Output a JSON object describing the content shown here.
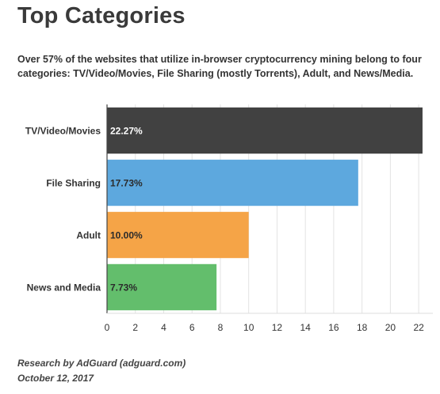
{
  "title": "Top Categories",
  "subtitle": "Over 57% of the websites that utilize in-browser cryptocurrency mining belong to four categories: TV/Video/Movies, File Sharing (mostly Torrents), Adult, and News/Media.",
  "footer": {
    "source": "Research by AdGuard (adguard.com)",
    "date": "October 12, 2017"
  },
  "chart_data": {
    "type": "bar",
    "orientation": "horizontal",
    "categories": [
      "TV/Video/Movies",
      "File Sharing",
      "Adult",
      "News and Media"
    ],
    "values": [
      22.27,
      17.73,
      10.0,
      7.73
    ],
    "data_labels": [
      "22.27%",
      "17.73%",
      "10.00%",
      "7.73%"
    ],
    "colors": [
      "#414141",
      "#5da8de",
      "#f5a447",
      "#63be6c"
    ],
    "xlim": [
      0,
      23
    ],
    "xticks": [
      0,
      2,
      4,
      6,
      8,
      10,
      12,
      14,
      16,
      18,
      20,
      22
    ],
    "grid": true,
    "title": "Top Categories"
  }
}
